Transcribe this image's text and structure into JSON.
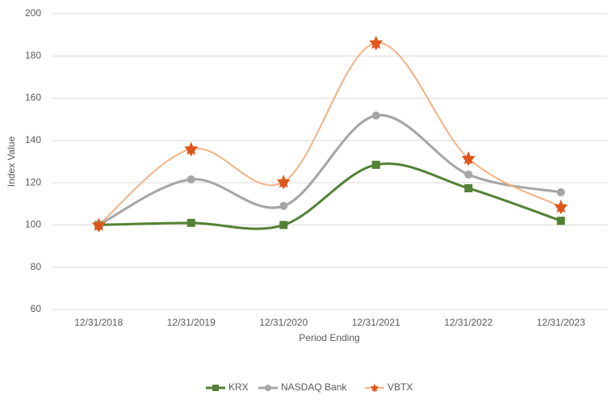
{
  "chart_data": {
    "type": "line",
    "x_label": "Period Ending",
    "y_label": "Index Value",
    "categories": [
      "12/31/2018",
      "12/31/2019",
      "12/31/2020",
      "12/31/2021",
      "12/31/2022",
      "12/31/2023"
    ],
    "series": [
      {
        "name": "KRX",
        "color": "#538135",
        "values": [
          100,
          101,
          100,
          128.5,
          117.4,
          102
        ]
      },
      {
        "name": "NASDAQ Bank",
        "color": "#a5a5a5",
        "values": [
          100,
          121.6,
          109,
          151.8,
          123.9,
          115.5
        ]
      },
      {
        "name": "VBTX",
        "color": "#f4b183",
        "marker_color": "#e0561a",
        "values": [
          100,
          136,
          120.4,
          186.2,
          131.5,
          108.6
        ]
      }
    ],
    "ylim": [
      60,
      200
    ],
    "yticks": [
      60,
      80,
      100,
      120,
      140,
      160,
      180,
      200
    ],
    "grid": true,
    "smooth": true,
    "legend": "bottom"
  }
}
